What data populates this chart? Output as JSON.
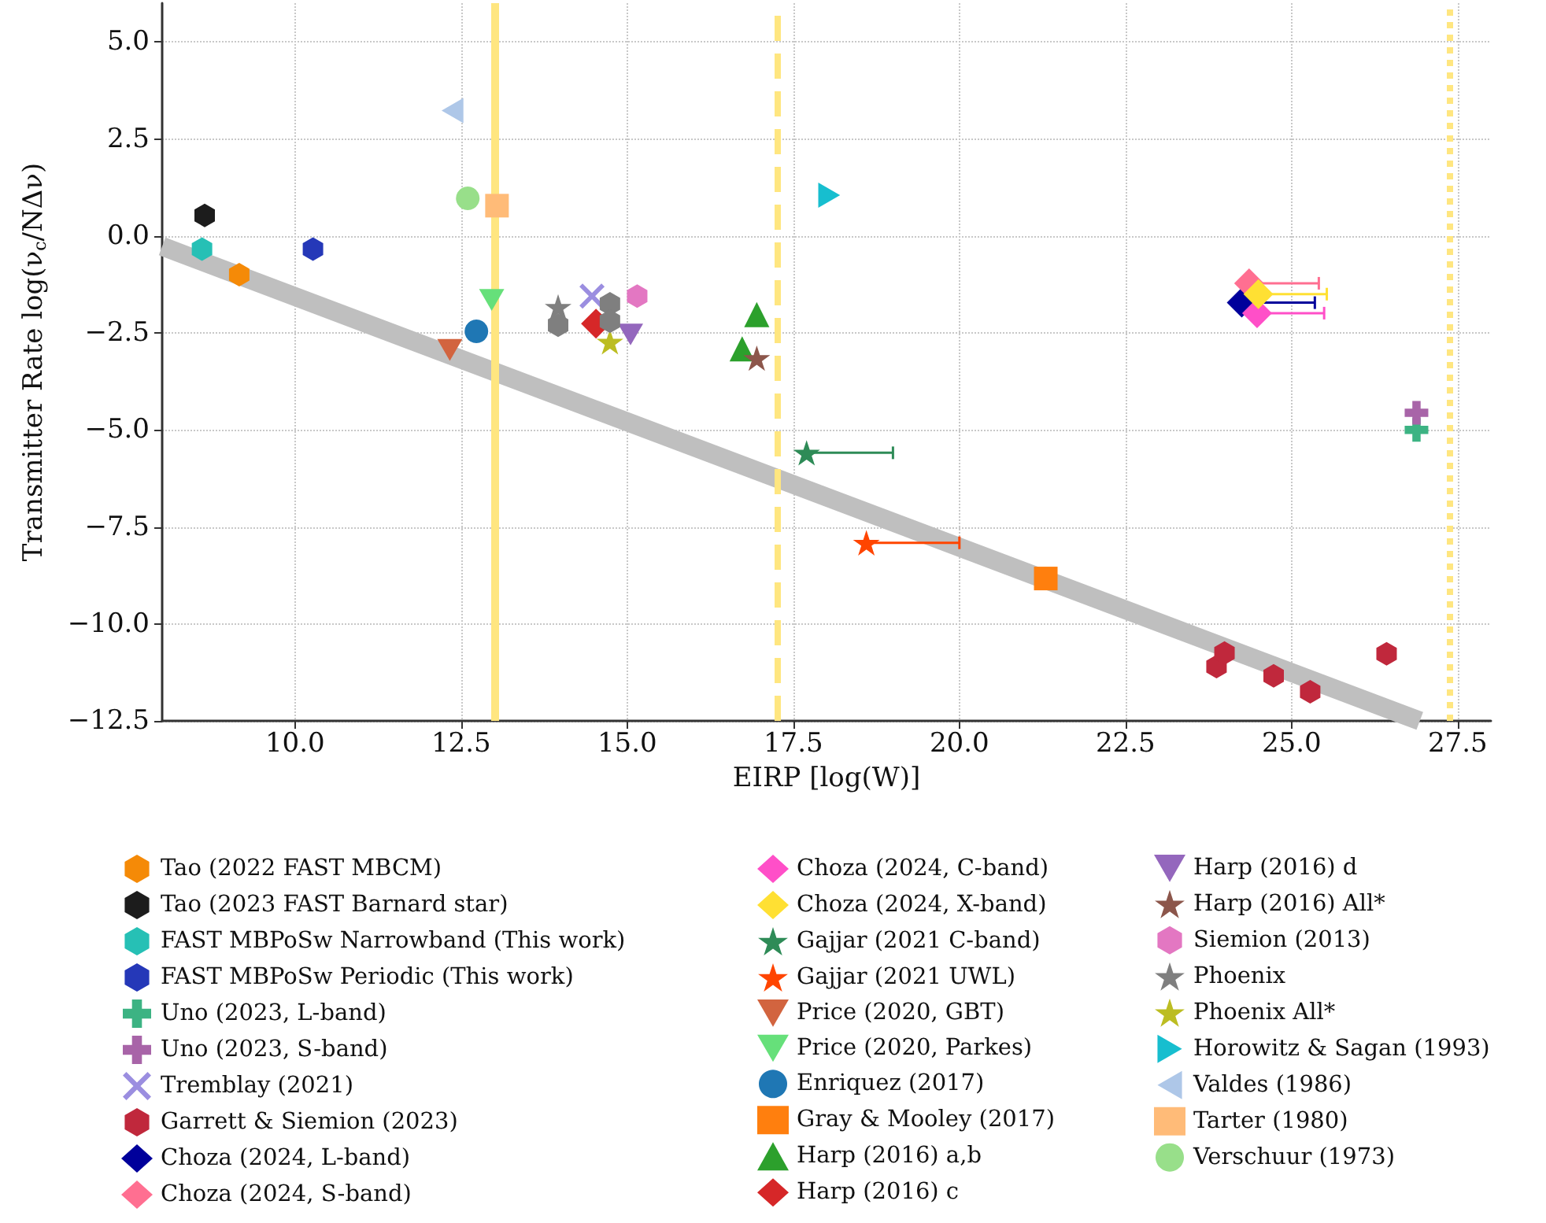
{
  "chart_data": {
    "type": "scatter",
    "xlabel": "EIRP [log(W)]",
    "ylabel": "Transmitter Rate log(ν$_{c}$/NΔν)",
    "xlim": [
      8,
      28
    ],
    "ylim": [
      -12.5,
      6
    ],
    "xticks": [
      {
        "value": 10,
        "label": "10.0"
      },
      {
        "value": 12.5,
        "label": "12.5"
      },
      {
        "value": 15,
        "label": "15.0"
      },
      {
        "value": 17.5,
        "label": "17.5"
      },
      {
        "value": 20,
        "label": "20.0"
      },
      {
        "value": 22.5,
        "label": "22.5"
      },
      {
        "value": 25,
        "label": "25.0"
      },
      {
        "value": 27.5,
        "label": "27.5"
      }
    ],
    "yticks": [
      {
        "value": 5,
        "label": "5.0"
      },
      {
        "value": 2.5,
        "label": "2.5"
      },
      {
        "value": 0,
        "label": "0.0"
      },
      {
        "value": -2.5,
        "label": "−2.5"
      },
      {
        "value": -5,
        "label": "−5.0"
      },
      {
        "value": -7.5,
        "label": "−7.5"
      },
      {
        "value": -10,
        "label": "−10.0"
      },
      {
        "value": -12.5,
        "label": "−12.5"
      }
    ],
    "grid": true,
    "legend": "bottom",
    "ref_lines": [
      {
        "axis": "x",
        "value": 13.0,
        "color": "#ffe680",
        "line_style": "solid"
      },
      {
        "axis": "x",
        "value": 17.25,
        "color": "#ffe680",
        "line_style": "dashed"
      },
      {
        "axis": "x",
        "value": 27.38,
        "color": "#ffe680",
        "line_style": "dotted"
      }
    ],
    "series": [
      {
        "type": "line",
        "color": "#bfbfbf",
        "marker": "none",
        "x": [
          8,
          26.93
        ],
        "values": [
          -0.27,
          -12.5
        ]
      },
      {
        "name": "Tao (2022 FAST MBCM)",
        "color": "#f58a07",
        "x": [
          9.16
        ],
        "values": [
          -1.0
        ]
      },
      {
        "name": "Tao (2023 FAST Barnard star)",
        "color": "#1c1c1c",
        "x": [
          8.64
        ],
        "values": [
          0.53
        ]
      },
      {
        "name": "FAST MBPoSw Narrowband (This work)",
        "color": "#26c0b5",
        "x": [
          8.6
        ],
        "values": [
          -0.34
        ]
      },
      {
        "name": "FAST MBPoSw Periodic (This work)",
        "color": "#2538b8",
        "x": [
          10.27
        ],
        "values": [
          -0.34
        ]
      },
      {
        "name": "Uno (2023, L-band)",
        "color": "#3cb383",
        "marker": "plus",
        "x": [
          26.88
        ],
        "values": [
          -5.0
        ]
      },
      {
        "name": "Uno (2023, S-band)",
        "color": "#a864a8",
        "marker": "plus",
        "x": [
          26.88
        ],
        "values": [
          -4.56
        ]
      },
      {
        "name": "Tremblay (2021)",
        "color": "#9b8ee0",
        "marker": "x",
        "x": [
          14.47
        ],
        "values": [
          -1.55
        ]
      },
      {
        "name": "Garrett & Siemion (2023)",
        "color": "#c0283c",
        "x": [
          23.87,
          23.99,
          24.73,
          25.28,
          26.43
        ],
        "values": [
          -11.1,
          -10.75,
          -11.34,
          -11.75,
          -10.77
        ]
      },
      {
        "name": "Choza (2024, L-band)",
        "color": "#00009b",
        "marker": "diamond",
        "x": [
          24.25
        ],
        "values": [
          -1.72
        ],
        "xerrors": [
          [
            24.25,
            25.35
          ]
        ]
      },
      {
        "name": "Choza (2024, S-band)",
        "color": "#ff6f91",
        "marker": "diamond",
        "x": [
          24.36
        ],
        "values": [
          -1.22
        ],
        "xerrors": [
          [
            24.36,
            25.41
          ]
        ]
      },
      {
        "name": "Choza (2024, C-band)",
        "color": "#ff4fc8",
        "marker": "diamond",
        "x": [
          24.48
        ],
        "values": [
          -1.99
        ],
        "xerrors": [
          [
            24.48,
            25.49
          ]
        ]
      },
      {
        "name": "Choza (2024, X-band)",
        "color": "#ffe033",
        "marker": "diamond",
        "x": [
          24.5
        ],
        "values": [
          -1.5
        ],
        "xerrors": [
          [
            24.5,
            25.53
          ]
        ]
      },
      {
        "name": "Gajjar (2021 C-band)",
        "color": "#2e8b57",
        "marker": "star",
        "x": [
          17.7
        ],
        "values": [
          -5.59
        ],
        "xerrors": [
          [
            17.7,
            19.0
          ]
        ]
      },
      {
        "name": "Gajjar (2021 UWL)",
        "color": "#ff4500",
        "marker": "star",
        "x": [
          18.6
        ],
        "values": [
          -7.91
        ],
        "xerrors": [
          [
            18.6,
            20.0
          ]
        ]
      },
      {
        "name": "Price (2020, GBT)",
        "color": "#d2643f",
        "marker": "triangle-down",
        "x": [
          12.33
        ],
        "values": [
          -2.94
        ]
      },
      {
        "name": "Price (2020, Parkes)",
        "color": "#66e07a",
        "marker": "triangle-down",
        "x": [
          12.96
        ],
        "values": [
          -1.65
        ]
      },
      {
        "name": "Enriquez (2017)",
        "color": "#1f77b4",
        "marker": "circle",
        "x": [
          12.73
        ],
        "values": [
          -2.46
        ]
      },
      {
        "name": "Gray & Mooley (2017)",
        "color": "#ff7f0e",
        "marker": "square",
        "x": [
          21.3
        ],
        "values": [
          -8.83
        ]
      },
      {
        "name": "Harp (2016) a,b",
        "color": "#2ca02c",
        "marker": "triangle",
        "x": [
          16.95,
          16.73
        ],
        "values": [
          -2.03,
          -2.91
        ]
      },
      {
        "name": "Harp (2016) c",
        "color": "#d62728",
        "marker": "diamond",
        "x": [
          14.53
        ],
        "values": [
          -2.26
        ]
      },
      {
        "name": "Harp (2016) d",
        "color": "#9467bd",
        "marker": "triangle-down",
        "x": [
          15.05
        ],
        "values": [
          -2.54
        ]
      },
      {
        "name": "Harp (2016) All*",
        "color": "#8c564b",
        "marker": "star",
        "x": [
          16.95
        ],
        "values": [
          -3.15
        ]
      },
      {
        "name": "Siemion (2013)",
        "color": "#e377c2",
        "x": [
          15.15
        ],
        "values": [
          -1.55
        ]
      },
      {
        "name": "Phoenix",
        "color": "#7f7f7f",
        "marker": "star",
        "x": [
          13.96
        ],
        "values": [
          -1.83
        ]
      },
      {
        "name": "Phoenix All*",
        "color": "#bcbd22",
        "marker": "star",
        "x": [
          14.74
        ],
        "values": [
          -2.73
        ]
      },
      {
        "name": "Horowitz & Sagan (1993)",
        "color": "#17becf",
        "marker": "triangle-right",
        "x": [
          18.04
        ],
        "values": [
          1.05
        ]
      },
      {
        "name": "Valdes (1986)",
        "color": "#aec7e8",
        "marker": "triangle-left",
        "x": [
          12.37
        ],
        "values": [
          3.23
        ]
      },
      {
        "name": "Tarter (1980)",
        "color": "#ffbb78",
        "marker": "square",
        "x": [
          13.04
        ],
        "values": [
          0.78
        ]
      },
      {
        "name": "Verschuur (1973)",
        "color": "#98df8a",
        "marker": "circle",
        "x": [
          12.6
        ],
        "values": [
          0.97
        ]
      },
      {
        "color": "#7f7f7f",
        "x": [
          13.96,
          14.74,
          14.74
        ],
        "values": [
          -2.3,
          -1.75,
          -2.2
        ]
      }
    ]
  }
}
